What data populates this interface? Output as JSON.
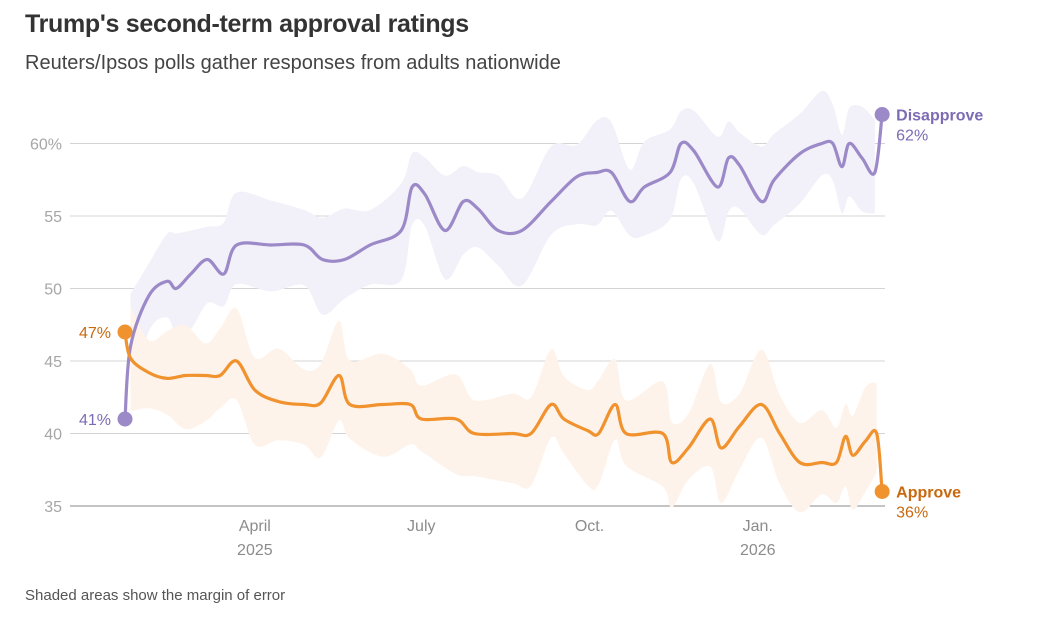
{
  "title": "Trump's second-term approval ratings",
  "subtitle": "Reuters/Ipsos polls gather responses from adults nationwide",
  "footnote": "Shaded areas show the margin of error",
  "colors": {
    "disapprove": "#9b89c8",
    "disapprove_band": "#f2f0f8",
    "approve": "#f0922e",
    "approve_band": "#fef3ea",
    "approve_label": "#c8690f",
    "disapprove_label": "#7d6bb3"
  },
  "chart_data": {
    "type": "line",
    "title": "Trump's second-term approval ratings",
    "subtitle": "Reuters/Ipsos polls gather responses from adults nationwide",
    "xlabel": "",
    "ylabel": "",
    "ylim": [
      35,
      63
    ],
    "xlim": [
      "2025-01-20",
      "2026-03-05"
    ],
    "y_ticks": [
      {
        "value": 60,
        "label": "60%"
      },
      {
        "value": 55,
        "label": "55"
      },
      {
        "value": 50,
        "label": "50"
      },
      {
        "value": 45,
        "label": "45"
      },
      {
        "value": 40,
        "label": "40"
      },
      {
        "value": 35,
        "label": "35"
      }
    ],
    "x_ticks": [
      {
        "date": "2025-04-01",
        "label": "April",
        "sublabel": "2025"
      },
      {
        "date": "2025-07-01",
        "label": "July",
        "sublabel": ""
      },
      {
        "date": "2025-10-01",
        "label": "Oct.",
        "sublabel": ""
      },
      {
        "date": "2026-01-01",
        "label": "Jan.",
        "sublabel": "2026"
      }
    ],
    "grid": true,
    "shaded_band": "margin of error",
    "series": [
      {
        "name": "Disapprove",
        "color": "#9b89c8",
        "end_label": "Disapprove",
        "end_value_label": "62%",
        "start_value_label": "41%",
        "points": [
          [
            "2025-01-20",
            41
          ],
          [
            "2025-01-23",
            46
          ],
          [
            "2025-02-02",
            49.5
          ],
          [
            "2025-02-12",
            50.5
          ],
          [
            "2025-02-17",
            50
          ],
          [
            "2025-02-25",
            51
          ],
          [
            "2025-03-06",
            52
          ],
          [
            "2025-03-15",
            51
          ],
          [
            "2025-03-22",
            53
          ],
          [
            "2025-04-10",
            53
          ],
          [
            "2025-04-28",
            53
          ],
          [
            "2025-05-08",
            52
          ],
          [
            "2025-05-20",
            52
          ],
          [
            "2025-06-03",
            53
          ],
          [
            "2025-06-20",
            54
          ],
          [
            "2025-06-26",
            57
          ],
          [
            "2025-07-03",
            56.5
          ],
          [
            "2025-07-14",
            54
          ],
          [
            "2025-07-24",
            56
          ],
          [
            "2025-08-01",
            55.5
          ],
          [
            "2025-08-12",
            54
          ],
          [
            "2025-08-25",
            54
          ],
          [
            "2025-09-10",
            56
          ],
          [
            "2025-09-24",
            57.7
          ],
          [
            "2025-10-05",
            58
          ],
          [
            "2025-10-13",
            58
          ],
          [
            "2025-10-23",
            56
          ],
          [
            "2025-10-31",
            57
          ],
          [
            "2025-11-14",
            58
          ],
          [
            "2025-11-20",
            60
          ],
          [
            "2025-11-27",
            59.5
          ],
          [
            "2025-12-10",
            57
          ],
          [
            "2025-12-16",
            59
          ],
          [
            "2025-12-22",
            58.5
          ],
          [
            "2026-01-03",
            56
          ],
          [
            "2026-01-10",
            57.5
          ],
          [
            "2026-01-24",
            59.3
          ],
          [
            "2026-02-05",
            60
          ],
          [
            "2026-02-11",
            60
          ],
          [
            "2026-02-16",
            58.4
          ],
          [
            "2026-02-20",
            60
          ],
          [
            "2026-02-27",
            59
          ],
          [
            "2026-03-06",
            58
          ],
          [
            "2026-03-10",
            62
          ]
        ],
        "band_halfwidth": 3
      },
      {
        "name": "Approve",
        "color": "#f0922e",
        "end_label": "Approve",
        "end_value_label": "36%",
        "start_value_label": "47%",
        "points": [
          [
            "2025-01-20",
            47
          ],
          [
            "2025-01-23",
            45.2
          ],
          [
            "2025-02-02",
            44.2
          ],
          [
            "2025-02-12",
            43.8
          ],
          [
            "2025-02-22",
            44
          ],
          [
            "2025-03-05",
            44
          ],
          [
            "2025-03-13",
            44
          ],
          [
            "2025-03-22",
            45
          ],
          [
            "2025-04-01",
            43
          ],
          [
            "2025-04-14",
            42.2
          ],
          [
            "2025-04-28",
            42
          ],
          [
            "2025-05-07",
            42.1
          ],
          [
            "2025-05-17",
            44
          ],
          [
            "2025-05-23",
            42
          ],
          [
            "2025-06-10",
            42
          ],
          [
            "2025-06-25",
            42
          ],
          [
            "2025-07-01",
            41
          ],
          [
            "2025-07-20",
            41
          ],
          [
            "2025-07-30",
            40
          ],
          [
            "2025-08-20",
            40
          ],
          [
            "2025-08-30",
            40
          ],
          [
            "2025-09-10",
            42
          ],
          [
            "2025-09-17",
            41
          ],
          [
            "2025-09-30",
            40.2
          ],
          [
            "2025-10-06",
            40
          ],
          [
            "2025-10-15",
            42
          ],
          [
            "2025-10-21",
            40
          ],
          [
            "2025-11-10",
            40
          ],
          [
            "2025-11-15",
            38
          ],
          [
            "2025-11-24",
            39
          ],
          [
            "2025-12-06",
            41
          ],
          [
            "2025-12-12",
            39
          ],
          [
            "2025-12-22",
            40.5
          ],
          [
            "2026-01-03",
            42
          ],
          [
            "2026-01-13",
            40
          ],
          [
            "2026-01-24",
            38
          ],
          [
            "2026-02-05",
            38
          ],
          [
            "2026-02-13",
            38
          ],
          [
            "2026-02-18",
            39.8
          ],
          [
            "2026-02-22",
            38.5
          ],
          [
            "2026-03-01",
            39.5
          ],
          [
            "2026-03-07",
            40
          ],
          [
            "2026-03-10",
            36
          ]
        ],
        "band_halfwidth": 3
      }
    ]
  }
}
